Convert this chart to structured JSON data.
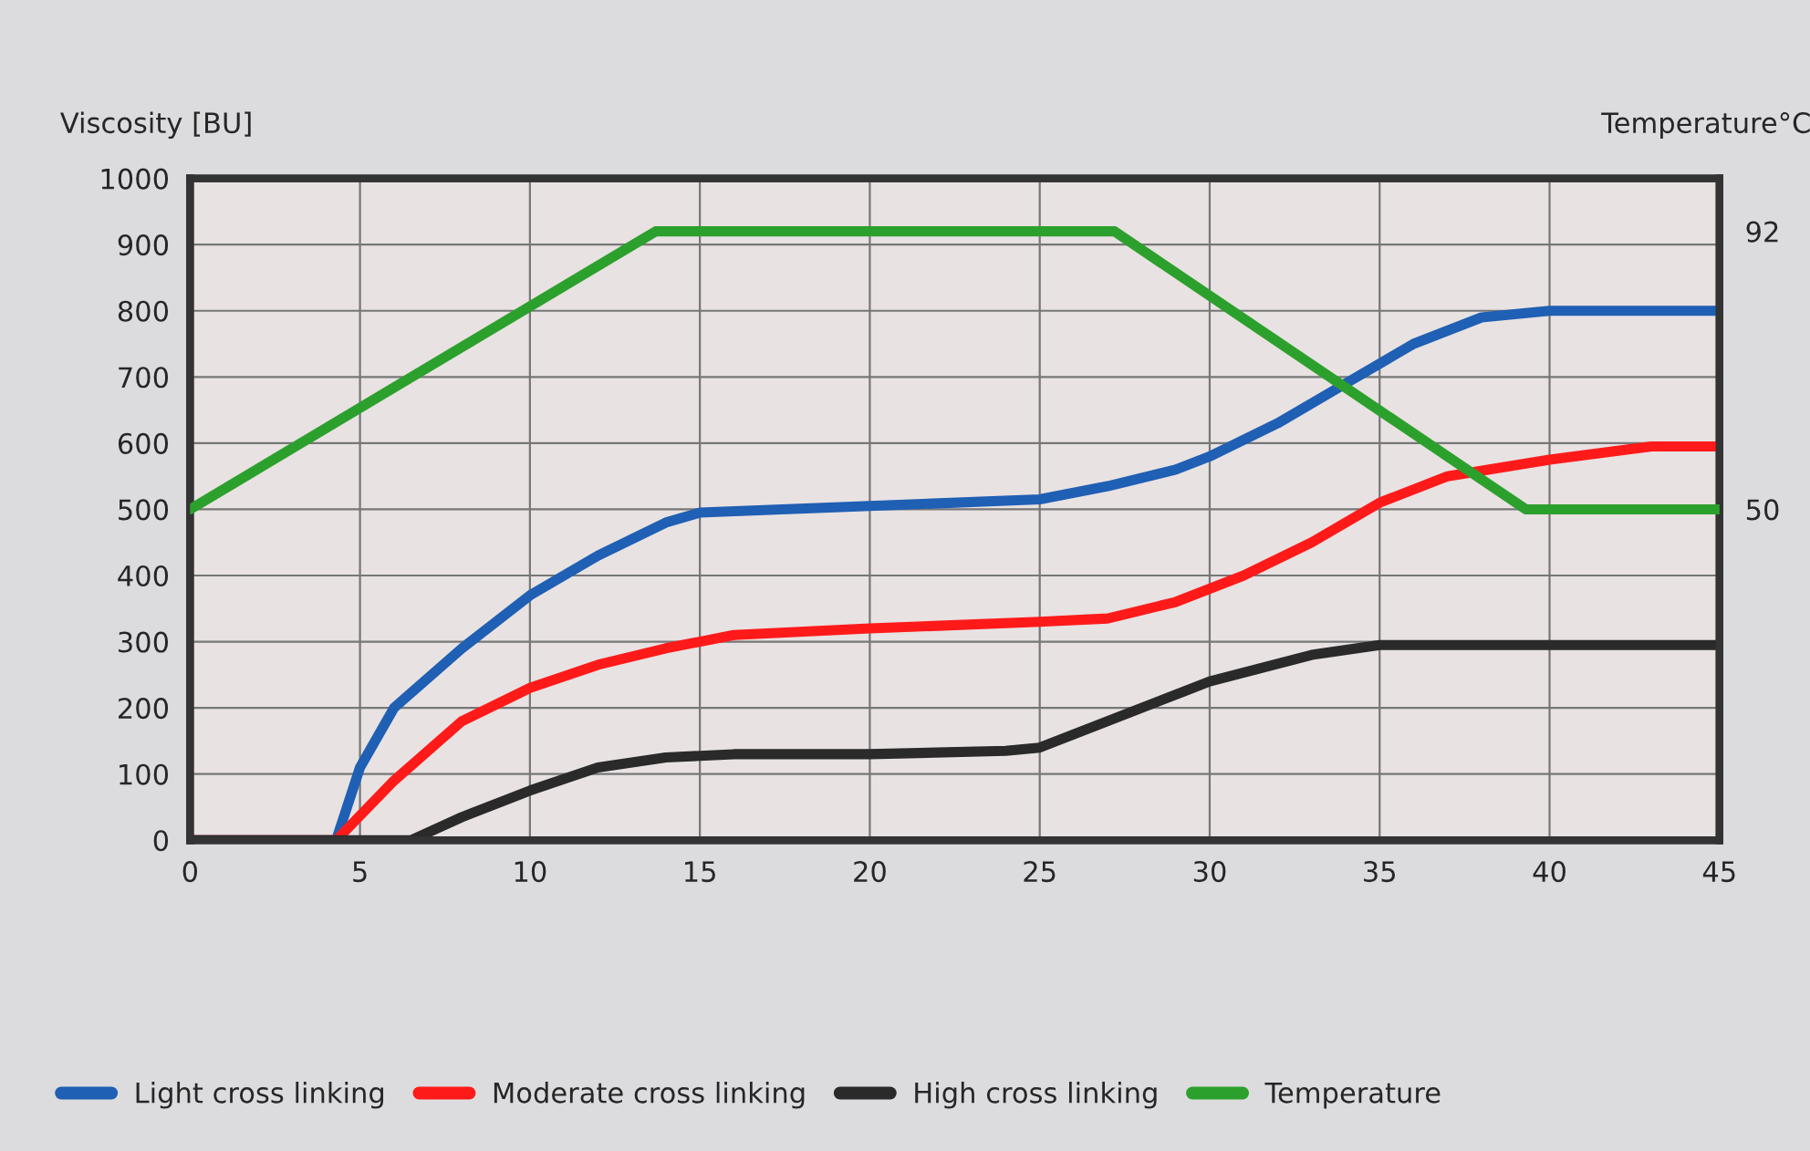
{
  "chart_data": {
    "type": "line",
    "ylabel": "Viscosity [BU]",
    "y2label": "Temperature°C",
    "xlim": [
      0,
      45
    ],
    "xticks": [
      0,
      5,
      10,
      15,
      20,
      25,
      30,
      35,
      40,
      45
    ],
    "ylim": [
      0,
      1000
    ],
    "yticks": [
      0,
      100,
      200,
      300,
      400,
      500,
      600,
      700,
      800,
      900,
      1000
    ],
    "y2lim": [
      0,
      100
    ],
    "y2ticks": [
      50,
      92
    ],
    "grid": true,
    "legend": "bottom",
    "line_style": "solid",
    "marker": "none",
    "series": [
      {
        "name": "Light cross linking",
        "color": "#1f5fb4",
        "x": [
          0,
          4.3,
          5,
          6,
          8,
          10,
          12,
          14,
          15,
          20,
          25,
          27,
          29,
          30,
          32,
          34,
          36,
          38,
          40,
          45
        ],
        "values": [
          0,
          0,
          110,
          200,
          290,
          370,
          430,
          480,
          495,
          505,
          515,
          535,
          560,
          580,
          630,
          690,
          750,
          790,
          800,
          800
        ]
      },
      {
        "name": "Moderate cross linking",
        "color": "#ff1a1a",
        "x": [
          0,
          4.3,
          6,
          8,
          10,
          12,
          14,
          16,
          20,
          25,
          27,
          29,
          31,
          33,
          35,
          37,
          40,
          43,
          45
        ],
        "values": [
          0,
          0,
          90,
          180,
          230,
          265,
          290,
          310,
          320,
          330,
          335,
          360,
          400,
          450,
          510,
          550,
          575,
          595,
          595
        ]
      },
      {
        "name": "High cross linking",
        "color": "#2a2a2a",
        "x": [
          0,
          6.5,
          8,
          10,
          12,
          14,
          16,
          20,
          24,
          25,
          27,
          30,
          33,
          35,
          37,
          45
        ],
        "values": [
          0,
          0,
          35,
          75,
          110,
          125,
          130,
          130,
          135,
          140,
          180,
          240,
          280,
          295,
          295,
          295
        ]
      },
      {
        "name": "Temperature",
        "color": "#2ca02c",
        "axis": "y2",
        "x": [
          0,
          13.7,
          27.2,
          39.3,
          45
        ],
        "values": [
          50,
          92,
          92,
          50,
          50
        ]
      }
    ]
  }
}
